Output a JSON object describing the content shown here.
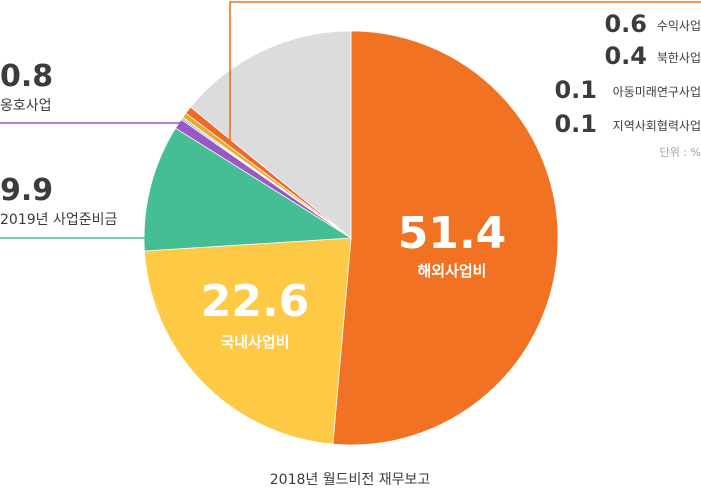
{
  "chart_data": {
    "type": "pie",
    "title": "",
    "caption": "2018년 월드비전 재무보고",
    "unit_note": "단위 : %",
    "slices": [
      {
        "label": "해외사업비",
        "value": 51.4,
        "display": "51.4",
        "color": "#F07222"
      },
      {
        "label": "국내사업비",
        "value": 22.6,
        "display": "22.6",
        "color": "#FEC945"
      },
      {
        "label": "2019년 사업준비금",
        "value": 9.9,
        "display": "9.9",
        "color": "#45BE93"
      },
      {
        "label": "옹호사업",
        "value": 0.8,
        "display": "0.8",
        "color": "#9A58C7"
      },
      {
        "label": "지역사회협력사업",
        "value": 0.1,
        "display": "0.1",
        "color": "#2C4E86"
      },
      {
        "label": "아동미래연구사업",
        "value": 0.1,
        "display": "0.1",
        "color": "#3A8FD0"
      },
      {
        "label": "북한사업",
        "value": 0.4,
        "display": "0.4",
        "color": "#F5A623"
      },
      {
        "label": "수익사업",
        "value": 0.6,
        "display": "0.6",
        "color": "#EE6A2A"
      },
      {
        "label": "",
        "value": 14.1,
        "display": "",
        "color": "#DCDCDC"
      }
    ]
  }
}
